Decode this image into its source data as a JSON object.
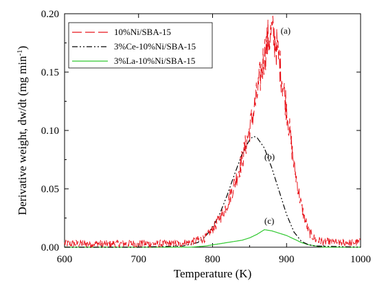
{
  "chart_data": {
    "type": "line",
    "title": "",
    "xlabel": "Temperature (K)",
    "ylabel_main": "Derivative weight, dw/dt (mg min",
    "ylabel_sup": "-1",
    "ylabel_close": ")",
    "xlim": [
      600,
      1000
    ],
    "ylim": [
      0,
      0.2
    ],
    "xticks": [
      600,
      700,
      800,
      900,
      1000
    ],
    "xtick_labels": [
      "600",
      "700",
      "800",
      "900",
      "1000"
    ],
    "yticks": [
      0,
      0.05,
      0.1,
      0.15,
      0.2
    ],
    "ytick_labels": [
      "0.00",
      "0.05",
      "0.10",
      "0.15",
      "0.20"
    ],
    "grid": false,
    "legend_position": "top-left",
    "series": [
      {
        "name": "10%Ni/SBA-15",
        "color": "#e8141b",
        "style": "long-dash, noisy",
        "x": [
          600,
          650,
          700,
          750,
          770,
          790,
          800,
          810,
          820,
          830,
          840,
          850,
          860,
          870,
          875,
          880,
          885,
          890,
          900,
          910,
          920,
          930,
          940,
          960,
          1000
        ],
        "y": [
          0.003,
          0.003,
          0.003,
          0.003,
          0.004,
          0.008,
          0.015,
          0.025,
          0.037,
          0.055,
          0.075,
          0.101,
          0.13,
          0.165,
          0.178,
          0.184,
          0.176,
          0.16,
          0.12,
          0.07,
          0.035,
          0.013,
          0.006,
          0.004,
          0.004
        ]
      },
      {
        "name": "3%Ce-10%Ni/SBA-15",
        "color": "#000000",
        "style": "dash-dot-dot",
        "x": [
          600,
          700,
          760,
          780,
          790,
          800,
          810,
          820,
          830,
          840,
          850,
          855,
          860,
          870,
          880,
          890,
          900,
          910,
          920,
          930,
          940,
          1000
        ],
        "y": [
          0.0,
          0.0,
          0.001,
          0.004,
          0.009,
          0.017,
          0.029,
          0.045,
          0.063,
          0.08,
          0.092,
          0.095,
          0.094,
          0.085,
          0.068,
          0.048,
          0.028,
          0.013,
          0.005,
          0.002,
          0.001,
          0.0
        ]
      },
      {
        "name": "3%La-10%Ni/SBA-15",
        "color": "#2ec82e",
        "style": "solid",
        "x": [
          600,
          770,
          790,
          800,
          820,
          840,
          850,
          860,
          870,
          880,
          890,
          900,
          910,
          920,
          930,
          950,
          1000
        ],
        "y": [
          0.0,
          0.0,
          0.001,
          0.002,
          0.004,
          0.006,
          0.008,
          0.011,
          0.015,
          0.014,
          0.012,
          0.01,
          0.007,
          0.004,
          0.002,
          0.0,
          0.0
        ]
      }
    ],
    "annotations": [
      {
        "text": "(a)",
        "x": 892,
        "y": 0.183
      },
      {
        "text": "(b)",
        "x": 870,
        "y": 0.075
      },
      {
        "text": "(c)",
        "x": 870,
        "y": 0.02
      }
    ]
  }
}
